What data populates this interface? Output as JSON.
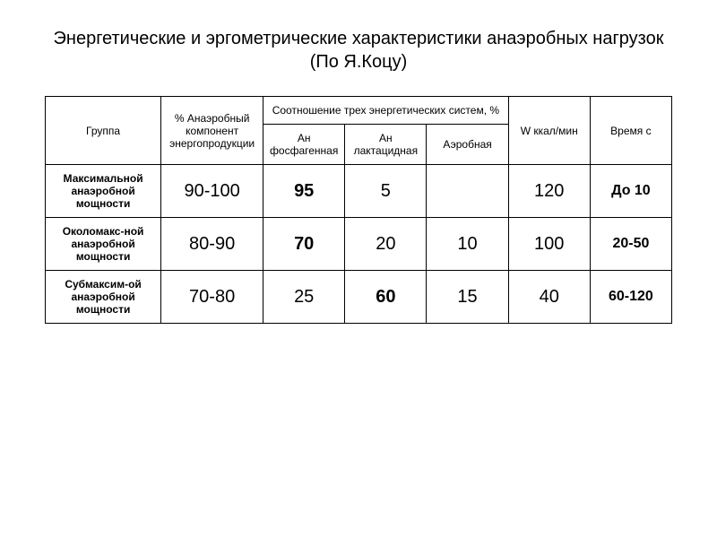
{
  "title": "Энергетические и эргометрические характеристики анаэробных нагрузок (По Я.Коцу)",
  "headers": {
    "group": "Группа",
    "anaerobic_component": "% Анаэробный компонент энергопродукции",
    "ratio_header": "Соотношение трех энергетических систем, %",
    "phosphagenic": "Ан фосфагенная",
    "lactate": "Ан лактацидная",
    "aerobic": "Аэробная",
    "w": "W ккал/мин",
    "time": "Время с"
  },
  "rows": [
    {
      "group": "Максимальной анаэробной мощности",
      "anaerobic": "90-100",
      "phosphagenic": "95",
      "lactate": "5",
      "aerobic": "",
      "w": "120",
      "time": "До 10",
      "bold_col": "phosphagenic"
    },
    {
      "group": "Околомакс-ной анаэробной мощности",
      "anaerobic": "80-90",
      "phosphagenic": "70",
      "lactate": "20",
      "aerobic": "10",
      "w": "100",
      "time": "20-50",
      "bold_col": "phosphagenic"
    },
    {
      "group": "Субмаксим-ой анаэробной мощности",
      "anaerobic": "70-80",
      "phosphagenic": "25",
      "lactate": "60",
      "aerobic": "15",
      "w": "40",
      "time": "60-120",
      "bold_col": "lactate"
    }
  ]
}
